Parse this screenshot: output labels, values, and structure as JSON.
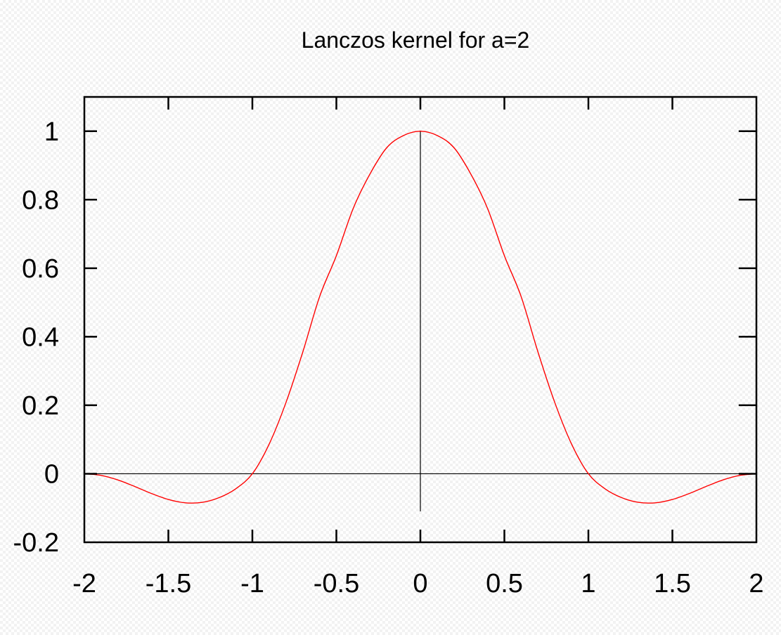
{
  "chart_data": {
    "type": "line",
    "title": "Lanczos kernel for a=2",
    "xlabel": "",
    "ylabel": "",
    "xlim": [
      -2,
      2
    ],
    "ylim": [
      -0.2,
      1.1
    ],
    "grid": false,
    "x_ticks": [
      -2,
      -1.5,
      -1,
      -0.5,
      0,
      0.5,
      1,
      1.5,
      2
    ],
    "x_tick_labels": [
      "-2",
      "-1.5",
      "-1",
      "-0.5",
      "0",
      "0.5",
      "1",
      "1.5",
      "2"
    ],
    "y_ticks": [
      -0.2,
      0,
      0.2,
      0.4,
      0.6,
      0.8,
      1
    ],
    "y_tick_labels": [
      "-0.2",
      "0",
      "0.2",
      "0.4",
      "0.6",
      "0.8",
      "1"
    ],
    "zero_axes": true,
    "series": [
      {
        "color": "#ff0000",
        "x": [
          -2.0,
          -1.9,
          -1.8,
          -1.7,
          -1.6,
          -1.5,
          -1.4,
          -1.3,
          -1.2,
          -1.1,
          -1.0,
          -0.9,
          -0.8,
          -0.7,
          -0.6,
          -0.5,
          -0.4,
          -0.3,
          -0.2,
          -0.1,
          0.0,
          0.1,
          0.2,
          0.3,
          0.4,
          0.5,
          0.6,
          0.7,
          0.8,
          0.9,
          1.0,
          1.1,
          1.2,
          1.3,
          1.4,
          1.5,
          1.6,
          1.7,
          1.8,
          1.9,
          2.0
        ],
        "values": [
          0.0,
          -0.0048,
          -0.0181,
          -0.0372,
          -0.0577,
          -0.075,
          -0.0847,
          -0.0836,
          -0.0701,
          -0.0442,
          0.0,
          0.0866,
          0.2079,
          0.3552,
          0.5168,
          0.6366,
          0.7743,
          0.8751,
          0.9519,
          0.9876,
          1.0,
          0.9876,
          0.9519,
          0.8751,
          0.7743,
          0.6366,
          0.5168,
          0.3552,
          0.2079,
          0.0866,
          0.0,
          -0.0442,
          -0.0701,
          -0.0836,
          -0.0847,
          -0.075,
          -0.0577,
          -0.0372,
          -0.0181,
          -0.0048,
          0.0
        ]
      }
    ]
  }
}
